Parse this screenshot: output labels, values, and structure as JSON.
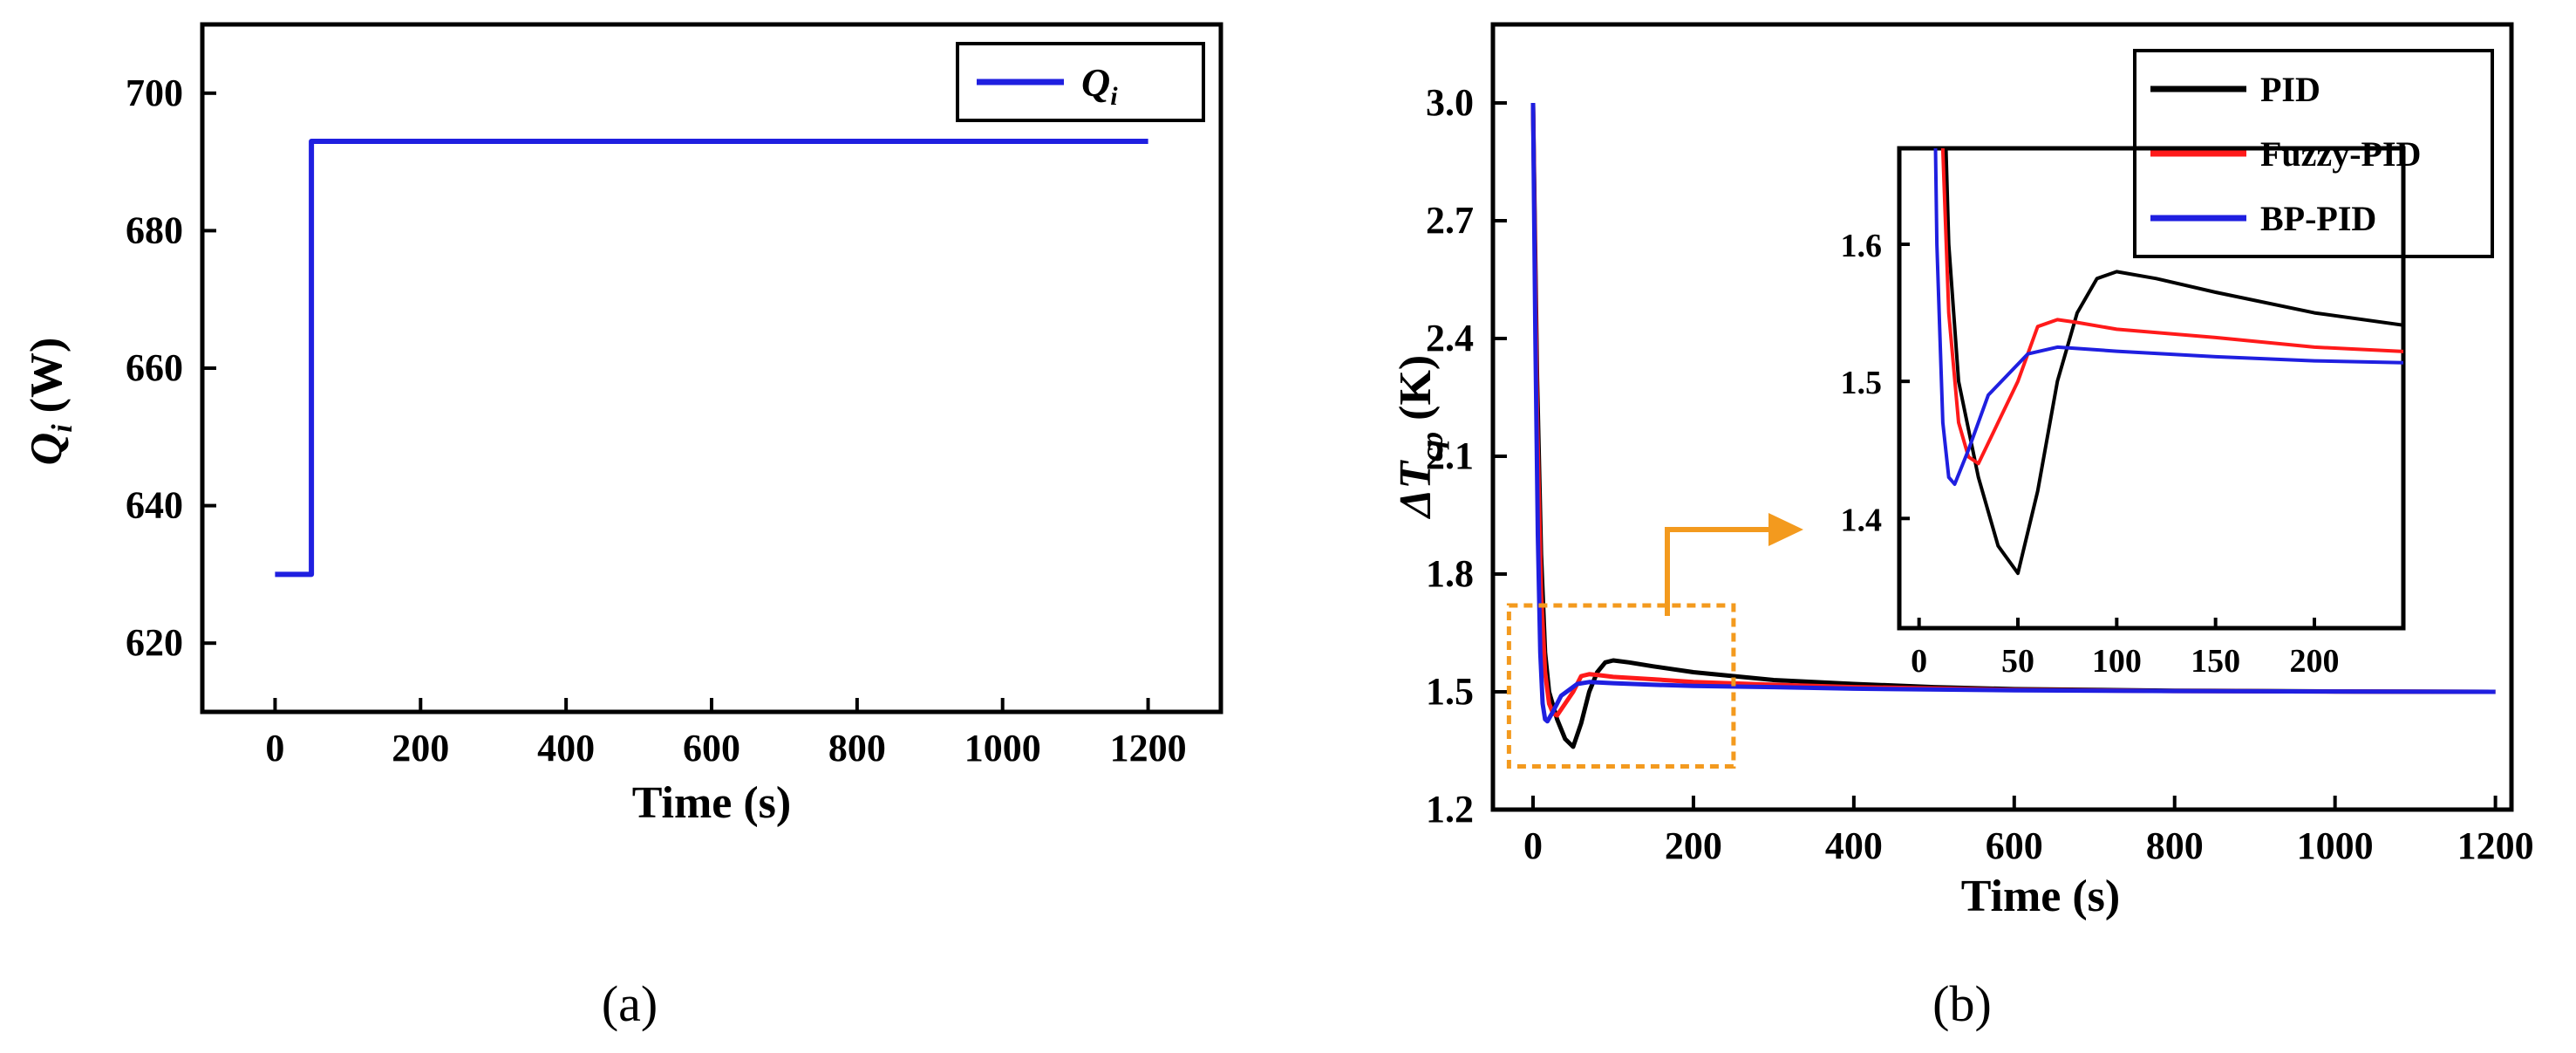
{
  "chart_data": [
    {
      "type": "line",
      "panel_label": "(a)",
      "xlabel": "Time (s)",
      "ylabel_base": "Q",
      "ylabel_sub": "i",
      "ylabel_unit": " (W)",
      "xlim": [
        -100,
        1300
      ],
      "ylim": [
        610,
        710
      ],
      "x_ticks": [
        0,
        200,
        400,
        600,
        800,
        1000,
        1200
      ],
      "y_ticks": [
        620,
        640,
        660,
        680,
        700
      ],
      "legend": {
        "placement": "top-right",
        "entries": [
          {
            "name_base": "Q",
            "name_sub": "i"
          }
        ]
      },
      "series": [
        {
          "name": "Qi",
          "color": "#1f1fe0",
          "points": [
            [
              0,
              630
            ],
            [
              50,
              630
            ],
            [
              50,
              693
            ],
            [
              1200,
              693
            ]
          ]
        }
      ]
    },
    {
      "type": "line",
      "panel_label": "(b)",
      "xlabel": "Time (s)",
      "ylabel_prefix": "ΔT",
      "ylabel_sub": "cp",
      "ylabel_unit": " (K)",
      "xlim": [
        -50,
        1220
      ],
      "ylim": [
        1.2,
        3.2
      ],
      "x_ticks": [
        0,
        200,
        400,
        600,
        800,
        1000,
        1200
      ],
      "y_ticks": [
        1.2,
        1.5,
        1.8,
        2.1,
        2.4,
        2.7,
        3.0
      ],
      "y_tick_labels": [
        "1.2",
        "1.5",
        "1.8",
        "2.1",
        "2.4",
        "2.7",
        "3.0"
      ],
      "legend": {
        "placement": "top-right",
        "entries": [
          {
            "name": "PID",
            "color": "#000000"
          },
          {
            "name": "Fuzzy-PID",
            "color": "#ff1a1a"
          },
          {
            "name": "BP-PID",
            "color": "#1f1fe0"
          }
        ]
      },
      "series": [
        {
          "name": "PID",
          "color": "#000000",
          "points": [
            [
              0,
              3.0
            ],
            [
              5,
              2.3
            ],
            [
              10,
              1.85
            ],
            [
              15,
              1.6
            ],
            [
              20,
              1.5
            ],
            [
              30,
              1.43
            ],
            [
              40,
              1.38
            ],
            [
              50,
              1.36
            ],
            [
              60,
              1.42
            ],
            [
              70,
              1.5
            ],
            [
              80,
              1.55
            ],
            [
              90,
              1.575
            ],
            [
              100,
              1.58
            ],
            [
              120,
              1.575
            ],
            [
              150,
              1.565
            ],
            [
              200,
              1.55
            ],
            [
              250,
              1.54
            ],
            [
              300,
              1.53
            ],
            [
              400,
              1.52
            ],
            [
              500,
              1.512
            ],
            [
              600,
              1.507
            ],
            [
              800,
              1.503
            ],
            [
              1000,
              1.501
            ],
            [
              1200,
              1.5
            ]
          ]
        },
        {
          "name": "Fuzzy-PID",
          "color": "#ff1a1a",
          "points": [
            [
              0,
              3.0
            ],
            [
              5,
              2.2
            ],
            [
              10,
              1.75
            ],
            [
              15,
              1.55
            ],
            [
              20,
              1.47
            ],
            [
              25,
              1.445
            ],
            [
              30,
              1.44
            ],
            [
              40,
              1.47
            ],
            [
              50,
              1.5
            ],
            [
              60,
              1.54
            ],
            [
              70,
              1.545
            ],
            [
              80,
              1.543
            ],
            [
              100,
              1.538
            ],
            [
              150,
              1.532
            ],
            [
              200,
              1.525
            ],
            [
              300,
              1.518
            ],
            [
              400,
              1.512
            ],
            [
              600,
              1.505
            ],
            [
              800,
              1.502
            ],
            [
              1000,
              1.501
            ],
            [
              1200,
              1.5
            ]
          ]
        },
        {
          "name": "BP-PID",
          "color": "#1f1fe0",
          "points": [
            [
              0,
              3.0
            ],
            [
              3,
              2.4
            ],
            [
              6,
              1.9
            ],
            [
              9,
              1.6
            ],
            [
              12,
              1.47
            ],
            [
              15,
              1.43
            ],
            [
              18,
              1.425
            ],
            [
              25,
              1.45
            ],
            [
              35,
              1.49
            ],
            [
              45,
              1.505
            ],
            [
              55,
              1.52
            ],
            [
              70,
              1.525
            ],
            [
              100,
              1.522
            ],
            [
              150,
              1.518
            ],
            [
              200,
              1.515
            ],
            [
              300,
              1.512
            ],
            [
              400,
              1.508
            ],
            [
              600,
              1.504
            ],
            [
              800,
              1.502
            ],
            [
              1000,
              1.501
            ],
            [
              1200,
              1.5
            ]
          ]
        }
      ],
      "inset": {
        "xlim": [
          -10,
          245
        ],
        "ylim": [
          1.32,
          1.67
        ],
        "x_ticks": [
          0,
          50,
          100,
          150,
          200
        ],
        "y_ticks": [
          1.4,
          1.5,
          1.6
        ],
        "y_tick_labels": [
          "1.4",
          "1.5",
          "1.6"
        ],
        "zoom_region": {
          "x": [
            -30,
            250
          ],
          "y": [
            1.31,
            1.72
          ]
        }
      }
    }
  ]
}
